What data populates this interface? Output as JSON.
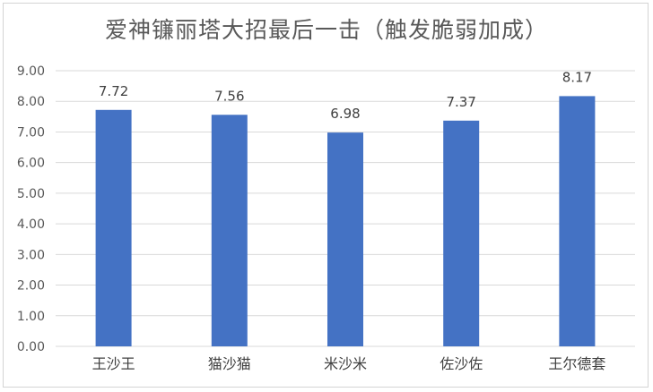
{
  "chart_data": {
    "type": "bar",
    "title": "爱神镰丽塔大招最后一击（触发脆弱加成）",
    "categories": [
      "王沙王",
      "猫沙猫",
      "米沙米",
      "佐沙佐",
      "王尔德套"
    ],
    "values": [
      7.72,
      7.56,
      6.98,
      7.37,
      8.17
    ],
    "value_labels": [
      "7.72",
      "7.56",
      "6.98",
      "7.37",
      "8.17"
    ],
    "ylim": [
      0,
      9
    ],
    "yticks": [
      "0.00",
      "1.00",
      "2.00",
      "3.00",
      "4.00",
      "5.00",
      "6.00",
      "7.00",
      "8.00",
      "9.00"
    ],
    "grid": true,
    "legend": "none",
    "bar_color": "#4472c4",
    "grid_color": "#d9d9d9"
  }
}
